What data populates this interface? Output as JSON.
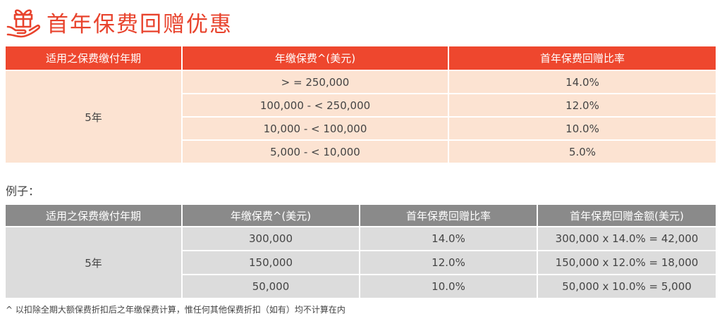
{
  "title": "首年保费回赠优惠",
  "table1": {
    "headers": [
      "适用之保费缴付年期",
      "年缴保费^(美元)",
      "首年保费回赠比率"
    ],
    "term": "5年",
    "rows": [
      {
        "premium": "> = 250,000",
        "rate": "14.0%"
      },
      {
        "premium": "100,000 - < 250,000",
        "rate": "12.0%"
      },
      {
        "premium": "10,000 - < 100,000",
        "rate": "10.0%"
      },
      {
        "premium": "5,000 - < 10,000",
        "rate": "5.0%"
      }
    ]
  },
  "example_label": "例子：",
  "table2": {
    "headers": [
      "适用之保费缴付年期",
      "年缴保费^(美元)",
      "首年保费回赠比率",
      "首年保费回赠金额(美元)"
    ],
    "term": "5年",
    "rows": [
      {
        "premium": "300,000",
        "rate": "14.0%",
        "amount": "300,000 x 14.0% = 42,000"
      },
      {
        "premium": "150,000",
        "rate": "12.0%",
        "amount": "150,000 x 12.0% = 18,000"
      },
      {
        "premium": "50,000",
        "rate": "10.0%",
        "amount": "50,000 x 10.0% = 5,000"
      }
    ]
  },
  "footnote": "^ 以扣除全期大额保费折扣后之年缴保费计算，惟任何其他保费折扣（如有）均不计算在内",
  "colors": {
    "accent": "#ee472e",
    "table1_body": "#fce3d2",
    "table2_header": "#8a8a8a",
    "table2_body": "#dcdcdc"
  },
  "icons": {
    "title_icon": "gift-hand-icon"
  }
}
